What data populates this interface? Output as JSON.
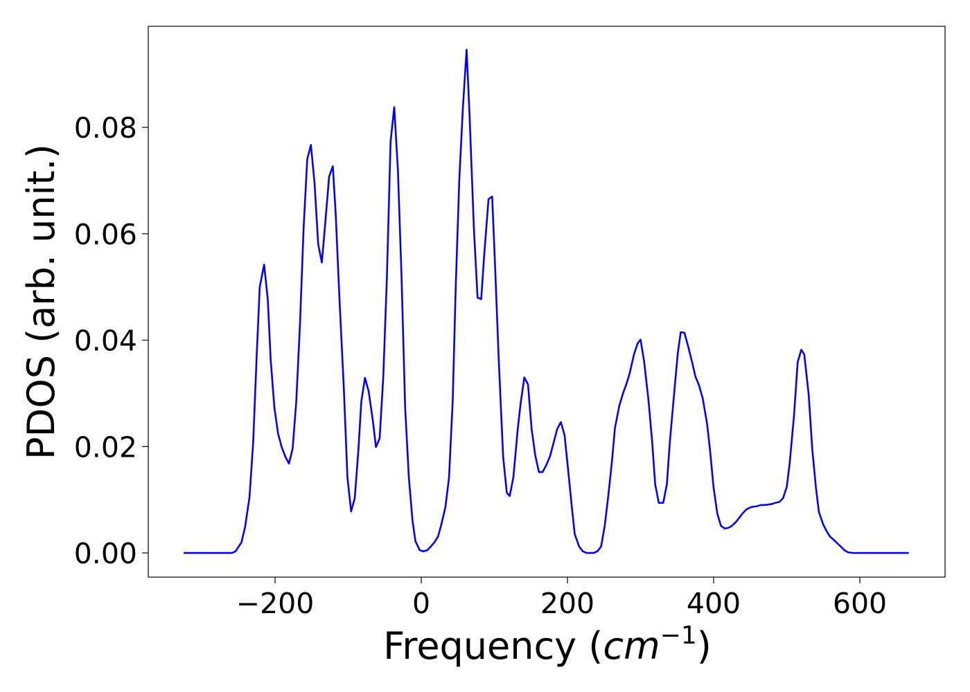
{
  "chart_data": {
    "type": "line",
    "x_label": [
      "Frequency (",
      "cm",
      "−1",
      ")"
    ],
    "y_label": "PDOS (arb. unit.)",
    "x": [
      -325,
      -259,
      -254,
      -246,
      -241,
      -235,
      -230,
      -225,
      -221,
      -215,
      -210,
      -206,
      -201,
      -196,
      -191,
      -186,
      -181,
      -176,
      -171,
      -166,
      -161,
      -156,
      -151,
      -146,
      -141,
      -136,
      -132,
      -126,
      -121,
      -117,
      -112,
      -106,
      -101,
      -96,
      -91,
      -86,
      -82,
      -77,
      -72,
      -66,
      -62,
      -57,
      -52,
      -47,
      -42,
      -37,
      -32,
      -27,
      -22,
      -17,
      -12,
      -8,
      -2,
      3,
      8,
      13,
      18,
      23,
      27,
      33,
      38,
      43,
      47,
      52,
      57,
      62,
      66,
      72,
      77,
      82,
      86,
      92,
      97,
      101,
      106,
      112,
      117,
      121,
      126,
      132,
      136,
      141,
      146,
      151,
      156,
      161,
      166,
      171,
      176,
      181,
      186,
      191,
      196,
      201,
      206,
      210,
      216,
      221,
      226,
      236,
      241,
      246,
      251,
      256,
      261,
      265,
      271,
      276,
      281,
      285,
      291,
      296,
      300,
      305,
      311,
      316,
      320,
      325,
      331,
      336,
      340,
      345,
      351,
      355,
      360,
      365,
      371,
      375,
      380,
      385,
      391,
      395,
      400,
      405,
      410,
      415,
      420,
      425,
      431,
      435,
      440,
      445,
      451,
      455,
      460,
      464,
      470,
      475,
      480,
      484,
      490,
      495,
      500,
      504,
      510,
      515,
      520,
      524,
      530,
      535,
      540,
      544,
      550,
      555,
      559,
      564,
      570,
      574,
      579,
      584,
      590,
      667
    ],
    "series": [
      {
        "color": "#0000ff",
        "values": [
          0,
          0,
          0.0003,
          0.002,
          0.0049,
          0.0105,
          0.0207,
          0.0376,
          0.05,
          0.0542,
          0.0477,
          0.0363,
          0.0274,
          0.0225,
          0.0199,
          0.0181,
          0.0168,
          0.0196,
          0.0285,
          0.0428,
          0.061,
          0.074,
          0.0767,
          0.0695,
          0.058,
          0.0546,
          0.061,
          0.0708,
          0.0727,
          0.0636,
          0.048,
          0.0311,
          0.0142,
          0.0078,
          0.0103,
          0.0194,
          0.0285,
          0.0329,
          0.0304,
          0.0246,
          0.0199,
          0.0215,
          0.033,
          0.0519,
          0.0773,
          0.0838,
          0.0721,
          0.0519,
          0.0272,
          0.0142,
          0.0061,
          0.0022,
          0.0005,
          0.0003,
          0.0005,
          0.0012,
          0.002,
          0.0031,
          0.0051,
          0.0086,
          0.0142,
          0.0285,
          0.0493,
          0.0701,
          0.0838,
          0.0946,
          0.0825,
          0.061,
          0.048,
          0.0477,
          0.0558,
          0.0665,
          0.067,
          0.0539,
          0.0363,
          0.0181,
          0.0113,
          0.0107,
          0.0142,
          0.0233,
          0.0282,
          0.033,
          0.0317,
          0.0233,
          0.0183,
          0.0152,
          0.0152,
          0.0165,
          0.0181,
          0.0207,
          0.0233,
          0.0246,
          0.0222,
          0.0155,
          0.0086,
          0.0035,
          0.0012,
          0.0003,
          0,
          0,
          0.0003,
          0.0012,
          0.0051,
          0.0109,
          0.0174,
          0.0235,
          0.0277,
          0.03,
          0.0319,
          0.0337,
          0.0373,
          0.0394,
          0.0401,
          0.0359,
          0.0285,
          0.0207,
          0.0129,
          0.0094,
          0.0094,
          0.0129,
          0.0207,
          0.0285,
          0.0376,
          0.0415,
          0.0414,
          0.0389,
          0.0356,
          0.0332,
          0.0315,
          0.0291,
          0.0243,
          0.0194,
          0.0122,
          0.0074,
          0.0051,
          0.0046,
          0.0047,
          0.0051,
          0.0059,
          0.0066,
          0.0075,
          0.0082,
          0.0086,
          0.0087,
          0.0088,
          0.009,
          0.009,
          0.0091,
          0.0092,
          0.0094,
          0.0096,
          0.0103,
          0.0124,
          0.0168,
          0.0259,
          0.0359,
          0.0382,
          0.0373,
          0.0298,
          0.0194,
          0.0122,
          0.0077,
          0.0053,
          0.004,
          0.0031,
          0.0025,
          0.0017,
          0.0012,
          0.0005,
          0.0001,
          0,
          0
        ]
      }
    ],
    "xlim": [
      -373.5,
      716.6
    ],
    "ylim": [
      -0.00455,
      0.099
    ],
    "xticks": [
      {
        "value": -200,
        "label": "−200"
      },
      0,
      200,
      400,
      600
    ],
    "yticks": [
      {
        "value": 0,
        "label": "0.00"
      },
      0.02,
      0.04,
      0.06,
      0.08
    ]
  }
}
